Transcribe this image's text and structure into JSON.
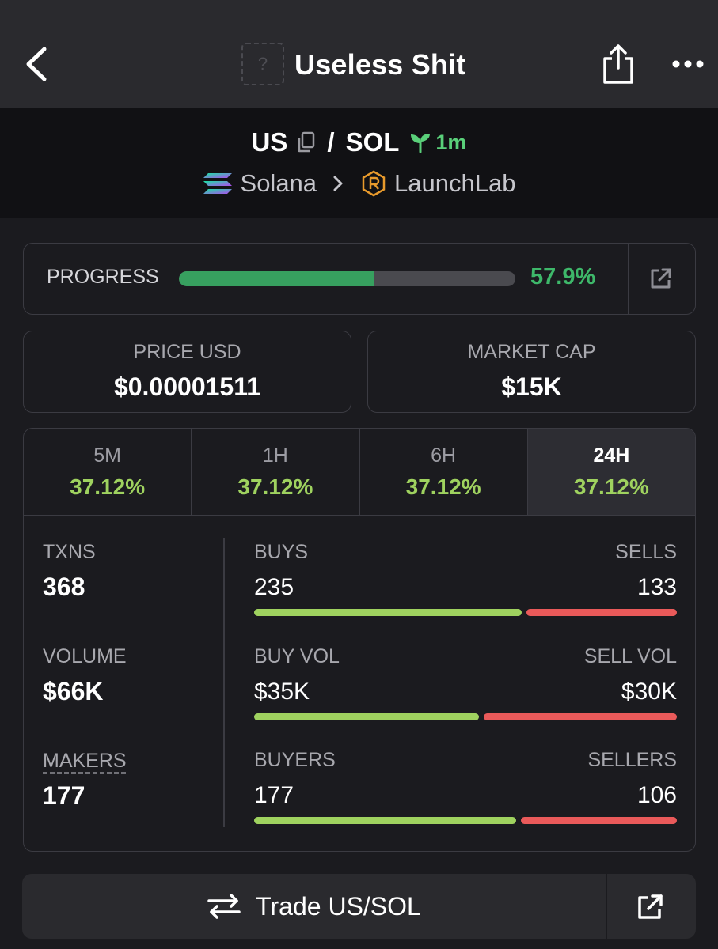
{
  "header": {
    "title": "Useless Shit",
    "logo_placeholder": "?"
  },
  "pair": {
    "base": "US",
    "separator": "/",
    "quote": "SOL",
    "age": "1m",
    "chain": "Solana",
    "dex": "LaunchLab"
  },
  "progress": {
    "label": "PROGRESS",
    "value": 0.579,
    "value_text": "57.9%"
  },
  "price": {
    "label": "PRICE USD",
    "value": "$0.00001511"
  },
  "market_cap": {
    "label": "MARKET CAP",
    "value": "$15K"
  },
  "periods": [
    {
      "label": "5M",
      "change": "37.12%"
    },
    {
      "label": "1H",
      "change": "37.12%"
    },
    {
      "label": "6H",
      "change": "37.12%"
    },
    {
      "label": "24H",
      "change": "37.12%",
      "active": true
    }
  ],
  "metrics": {
    "txns_label": "TXNS",
    "txns": "368",
    "volume_label": "VOLUME",
    "volume": "$66K",
    "makers_label": "MAKERS",
    "makers": "177"
  },
  "splits": {
    "buys_label": "BUYS",
    "buys": "235",
    "sells_label": "SELLS",
    "sells": "133",
    "buys_share": 0.639,
    "buy_vol_label": "BUY VOL",
    "buy_vol": "$35K",
    "sell_vol_label": "SELL VOL",
    "sell_vol": "$30K",
    "buy_vol_share": 0.538,
    "buyers_label": "BUYERS",
    "buyers": "177",
    "sellers_label": "SELLERS",
    "sellers": "106",
    "buyers_share": 0.626
  },
  "trade": {
    "label": "Trade US/SOL"
  },
  "colors": {
    "accent_green": "#3eb86a",
    "change_green": "#9fd25f",
    "sell_red": "#ea5a5a"
  }
}
